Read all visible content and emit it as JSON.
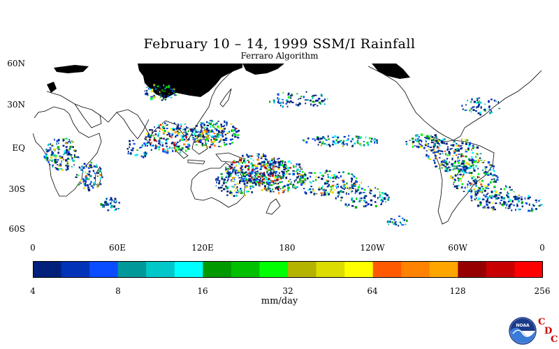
{
  "title": "February 10 – 14, 1999 SSM/I Rainfall",
  "subtitle": "Ferraro Algorithm",
  "latitude_labels": [
    "60N",
    "30N",
    "EQ",
    "30S",
    "60S"
  ],
  "longitude_labels": [
    "0",
    "60E",
    "120E",
    "180",
    "120W",
    "60W",
    "0"
  ],
  "colorbar": {
    "tick_labels": [
      "4",
      "8",
      "16",
      "32",
      "64",
      "128",
      "256"
    ],
    "units": "mm/day",
    "colors": [
      "#00207a",
      "#0033b8",
      "#0a4cff",
      "#00999a",
      "#00c8c8",
      "#00ffff",
      "#009900",
      "#00c000",
      "#00ff00",
      "#b4b400",
      "#dcdc00",
      "#ffff00",
      "#ff5a00",
      "#ff8200",
      "#ffa500",
      "#960000",
      "#c80000",
      "#ff0000"
    ]
  },
  "logo": {
    "name": "NOAA",
    "letters": [
      "C",
      "D",
      "C"
    ]
  },
  "map_colors": {
    "land_outline": "#000000",
    "no_data": "#000000",
    "background": "#ffffff"
  }
}
